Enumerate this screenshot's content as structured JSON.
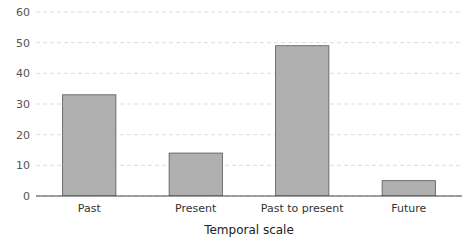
{
  "chart_data": {
    "type": "bar",
    "xlabel": "Temporal scale",
    "categories": [
      "Past",
      "Present",
      "Past to present",
      "Future"
    ],
    "values": [
      33,
      14,
      49,
      5
    ],
    "color": "#b0b0b0",
    "ylim": [
      0,
      60
    ],
    "yticks": [
      0,
      10,
      20,
      30,
      40,
      50,
      60
    ],
    "grid": true
  }
}
